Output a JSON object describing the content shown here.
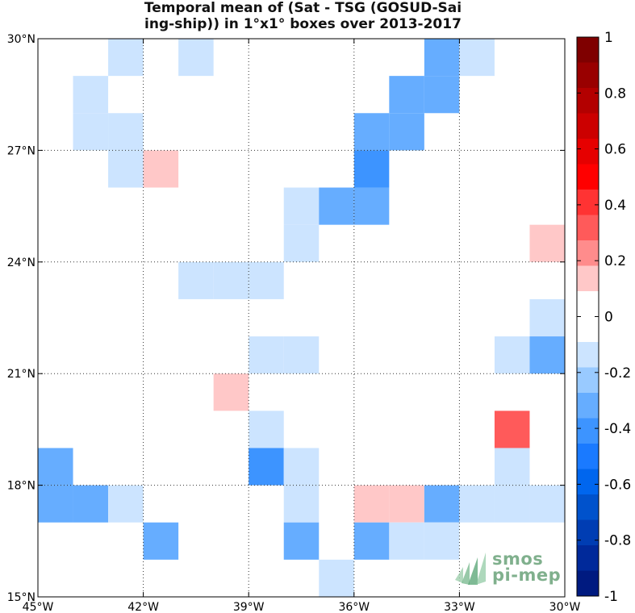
{
  "title": {
    "line1": "Temporal mean of (Sat - TSG (GOSUD-Sai",
    "line2": "ing-ship)) in 1°x1° boxes over 2013-2017"
  },
  "logo": {
    "line1": "smos",
    "line2": "pi-mep"
  },
  "chart_data": {
    "type": "heatmap",
    "title": "Temporal mean of (Sat - TSG (GOSUD-Saiing-ship)) in 1°x1° boxes over 2013-2017",
    "x_ticks": [
      {
        "lon": -45,
        "label": "45°W"
      },
      {
        "lon": -42,
        "label": "42°W"
      },
      {
        "lon": -39,
        "label": "39°W"
      },
      {
        "lon": -36,
        "label": "36°W"
      },
      {
        "lon": -33,
        "label": "33°W"
      },
      {
        "lon": -30,
        "label": "30°W"
      }
    ],
    "y_ticks": [
      {
        "lat": 15,
        "label": "15°N"
      },
      {
        "lat": 18,
        "label": "18°N"
      },
      {
        "lat": 21,
        "label": "21°N"
      },
      {
        "lat": 24,
        "label": "24°N"
      },
      {
        "lat": 27,
        "label": "27°N"
      },
      {
        "lat": 30,
        "label": "30°N"
      }
    ],
    "xlim": [
      -45,
      -30
    ],
    "ylim": [
      15,
      30
    ],
    "grid": true,
    "colorbar": {
      "range": [
        -1,
        1
      ],
      "ticks": [
        {
          "v": 1,
          "label": "1"
        },
        {
          "v": 0.8,
          "label": "0.8"
        },
        {
          "v": 0.6,
          "label": "0.6"
        },
        {
          "v": 0.4,
          "label": "0.4"
        },
        {
          "v": 0.2,
          "label": "0.2"
        },
        {
          "v": 0,
          "label": "0"
        },
        {
          "v": -0.2,
          "label": "-0.2"
        },
        {
          "v": -0.4,
          "label": "-0.4"
        },
        {
          "v": -0.6,
          "label": "-0.6"
        },
        {
          "v": -0.8,
          "label": "-0.8"
        },
        {
          "v": -1,
          "label": "-1"
        }
      ],
      "colors_top_to_bottom": [
        "#7f0000",
        "#990000",
        "#b30000",
        "#cc0000",
        "#e60000",
        "#ff0000",
        "#ff3333",
        "#ff5a5a",
        "#ff8c8c",
        "#ffc8c8",
        "#ffffff",
        "#ffffff",
        "#cce4ff",
        "#99caff",
        "#66adff",
        "#3d94ff",
        "#1a7aff",
        "#0066ee",
        "#0052cc",
        "#003db3",
        "#00299a",
        "#001a80"
      ]
    },
    "cells": [
      {
        "lon": -43,
        "lat": 29,
        "value": -0.15
      },
      {
        "lon": -41,
        "lat": 29,
        "value": -0.15
      },
      {
        "lon": -34,
        "lat": 29,
        "value": -0.3
      },
      {
        "lon": -33,
        "lat": 29,
        "value": -0.15
      },
      {
        "lon": -44,
        "lat": 28,
        "value": -0.15
      },
      {
        "lon": -35,
        "lat": 28,
        "value": -0.3
      },
      {
        "lon": -34,
        "lat": 28,
        "value": -0.3
      },
      {
        "lon": -44,
        "lat": 27,
        "value": -0.15
      },
      {
        "lon": -43,
        "lat": 27,
        "value": -0.15
      },
      {
        "lon": -36,
        "lat": 27,
        "value": -0.3
      },
      {
        "lon": -35,
        "lat": 27,
        "value": -0.3
      },
      {
        "lon": -43,
        "lat": 26,
        "value": -0.15
      },
      {
        "lon": -42,
        "lat": 26,
        "value": 0.15
      },
      {
        "lon": -36,
        "lat": 26,
        "value": -0.4
      },
      {
        "lon": -38,
        "lat": 25,
        "value": -0.15
      },
      {
        "lon": -37,
        "lat": 25,
        "value": -0.3
      },
      {
        "lon": -36,
        "lat": 25,
        "value": -0.3
      },
      {
        "lon": -38,
        "lat": 24,
        "value": -0.15
      },
      {
        "lon": -31,
        "lat": 24,
        "value": 0.15
      },
      {
        "lon": -41,
        "lat": 23,
        "value": -0.15
      },
      {
        "lon": -40,
        "lat": 23,
        "value": -0.15
      },
      {
        "lon": -39,
        "lat": 23,
        "value": -0.15
      },
      {
        "lon": -31,
        "lat": 22,
        "value": -0.15
      },
      {
        "lon": -39,
        "lat": 21,
        "value": -0.15
      },
      {
        "lon": -38,
        "lat": 21,
        "value": -0.15
      },
      {
        "lon": -32,
        "lat": 21,
        "value": -0.15
      },
      {
        "lon": -31,
        "lat": 21,
        "value": -0.3
      },
      {
        "lon": -40,
        "lat": 20,
        "value": 0.15
      },
      {
        "lon": -39,
        "lat": 19,
        "value": -0.15
      },
      {
        "lon": -32,
        "lat": 19,
        "value": 0.3
      },
      {
        "lon": -45,
        "lat": 18,
        "value": -0.3
      },
      {
        "lon": -39,
        "lat": 18,
        "value": -0.4
      },
      {
        "lon": -38,
        "lat": 18,
        "value": -0.15
      },
      {
        "lon": -32,
        "lat": 18,
        "value": -0.15
      },
      {
        "lon": -45,
        "lat": 17,
        "value": -0.3
      },
      {
        "lon": -44,
        "lat": 17,
        "value": -0.3
      },
      {
        "lon": -43,
        "lat": 17,
        "value": -0.15
      },
      {
        "lon": -38,
        "lat": 17,
        "value": -0.15
      },
      {
        "lon": -36,
        "lat": 17,
        "value": 0.15
      },
      {
        "lon": -35,
        "lat": 17,
        "value": 0.15
      },
      {
        "lon": -34,
        "lat": 17,
        "value": -0.3
      },
      {
        "lon": -33,
        "lat": 17,
        "value": -0.15
      },
      {
        "lon": -32,
        "lat": 17,
        "value": -0.15
      },
      {
        "lon": -31,
        "lat": 17,
        "value": -0.15
      },
      {
        "lon": -42,
        "lat": 16,
        "value": -0.3
      },
      {
        "lon": -38,
        "lat": 16,
        "value": -0.3
      },
      {
        "lon": -36,
        "lat": 16,
        "value": -0.3
      },
      {
        "lon": -35,
        "lat": 16,
        "value": -0.15
      },
      {
        "lon": -34,
        "lat": 16,
        "value": -0.15
      },
      {
        "lon": -37,
        "lat": 15,
        "value": -0.15
      }
    ]
  }
}
